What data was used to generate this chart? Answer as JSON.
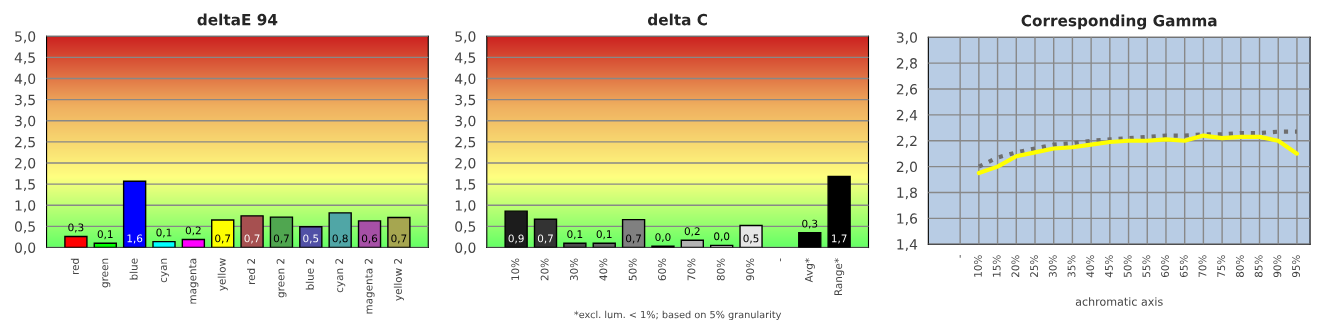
{
  "chart_data": [
    {
      "type": "bar",
      "title": "deltaE 94",
      "categories": [
        "red",
        "green",
        "blue",
        "cyan",
        "magenta",
        "yellow",
        "red 2",
        "green 2",
        "blue 2",
        "cyan 2",
        "magenta 2",
        "yellow 2"
      ],
      "values": [
        0.26,
        0.1,
        1.57,
        0.14,
        0.19,
        0.65,
        0.75,
        0.72,
        0.49,
        0.82,
        0.63,
        0.71
      ],
      "colors": [
        "#ff0000",
        "#00ff00",
        "#0000ff",
        "#00ffff",
        "#ff00ff",
        "#ffff00",
        "#a65050",
        "#50a650",
        "#5050a6",
        "#50a6a6",
        "#a650a6",
        "#a6a650"
      ],
      "value_labels": [
        "0,3",
        "0,1",
        "1,6",
        "0,1",
        "0,2",
        "0,7",
        "0,7",
        "0,7",
        "0,5",
        "0,8",
        "0,6",
        "0,7"
      ],
      "ylim": [
        0,
        5
      ],
      "yticks": [
        {
          "value": 0,
          "label": "0,0"
        },
        {
          "value": 0.5,
          "label": "0,5"
        },
        {
          "value": 1,
          "label": "1,0"
        },
        {
          "value": 1.5,
          "label": "1,5"
        },
        {
          "value": 2,
          "label": "2,0"
        },
        {
          "value": 2.5,
          "label": "2,5"
        },
        {
          "value": 3,
          "label": "3,0"
        },
        {
          "value": 3.5,
          "label": "3,5"
        },
        {
          "value": 4,
          "label": "4,0"
        },
        {
          "value": 4.5,
          "label": "4,5"
        },
        {
          "value": 5,
          "label": "5,0"
        }
      ],
      "grid": "y"
    },
    {
      "type": "bar",
      "title": "delta C",
      "categories": [
        "10%",
        "20%",
        "30%",
        "40%",
        "50%",
        "60%",
        "70%",
        "80%",
        "90%",
        "-",
        "Avg*",
        "Range*"
      ],
      "values": [
        0.86,
        0.67,
        0.1,
        0.1,
        0.66,
        0.03,
        0.17,
        0.05,
        0.52,
        null,
        0.35,
        1.68
      ],
      "colors": [
        "#1c1c1c",
        "#333333",
        "#4d4d4d",
        "#666666",
        "#808080",
        "#1a1a1a",
        "#b3b3b3",
        "#cccccc",
        "#e6e6e6",
        "#000000",
        "#000000",
        "#000000"
      ],
      "value_labels": [
        "0,9",
        "0,7",
        "0,1",
        "0,1",
        "0,7",
        "0,0",
        "0,2",
        "0,0",
        "0,5",
        null,
        "0,3",
        "1,7"
      ],
      "ylim": [
        0,
        5
      ],
      "yticks": [
        {
          "value": 0,
          "label": "0,0"
        },
        {
          "value": 0.5,
          "label": "0,5"
        },
        {
          "value": 1,
          "label": "1,0"
        },
        {
          "value": 1.5,
          "label": "1,5"
        },
        {
          "value": 2,
          "label": "2,0"
        },
        {
          "value": 2.5,
          "label": "2,5"
        },
        {
          "value": 3,
          "label": "3,0"
        },
        {
          "value": 3.5,
          "label": "3,5"
        },
        {
          "value": 4,
          "label": "4,0"
        },
        {
          "value": 4.5,
          "label": "4,5"
        },
        {
          "value": 5,
          "label": "5,0"
        }
      ],
      "grid": "y",
      "annotations": [
        "*excl. lum. < 1%; based on 5% granularity"
      ]
    },
    {
      "type": "line",
      "title": "Corresponding Gamma",
      "xlabel": "achromatic axis",
      "categories": [
        "-",
        "10%",
        "15%",
        "20%",
        "25%",
        "30%",
        "35%",
        "40%",
        "45%",
        "50%",
        "55%",
        "60%",
        "65%",
        "70%",
        "75%",
        "80%",
        "85%",
        "90%",
        "95%"
      ],
      "series": [
        {
          "color": "#6e6e6e",
          "line_style": "dotted",
          "values": [
            null,
            2.0,
            2.07,
            2.11,
            2.14,
            2.17,
            2.18,
            2.2,
            2.21,
            2.22,
            2.23,
            2.24,
            2.24,
            2.25,
            2.25,
            2.26,
            2.26,
            2.27,
            2.27
          ]
        },
        {
          "color": "#ffff00",
          "line_style": "solid",
          "values": [
            null,
            1.95,
            2.0,
            2.08,
            2.11,
            2.14,
            2.15,
            2.17,
            2.19,
            2.2,
            2.2,
            2.21,
            2.2,
            2.24,
            2.22,
            2.23,
            2.23,
            2.2,
            2.1
          ]
        }
      ],
      "ylim": [
        1.4,
        3.0
      ],
      "yticks": [
        {
          "value": 1.4,
          "label": "1,4"
        },
        {
          "value": 1.6,
          "label": "1,6"
        },
        {
          "value": 1.8,
          "label": "1,8"
        },
        {
          "value": 2.0,
          "label": "2,0"
        },
        {
          "value": 2.2,
          "label": "2,2"
        },
        {
          "value": 2.4,
          "label": "2,4"
        },
        {
          "value": 2.6,
          "label": "2,6"
        },
        {
          "value": 2.8,
          "label": "2,8"
        },
        {
          "value": 3.0,
          "label": "3,0"
        }
      ],
      "grid": true,
      "marker": "none"
    }
  ]
}
